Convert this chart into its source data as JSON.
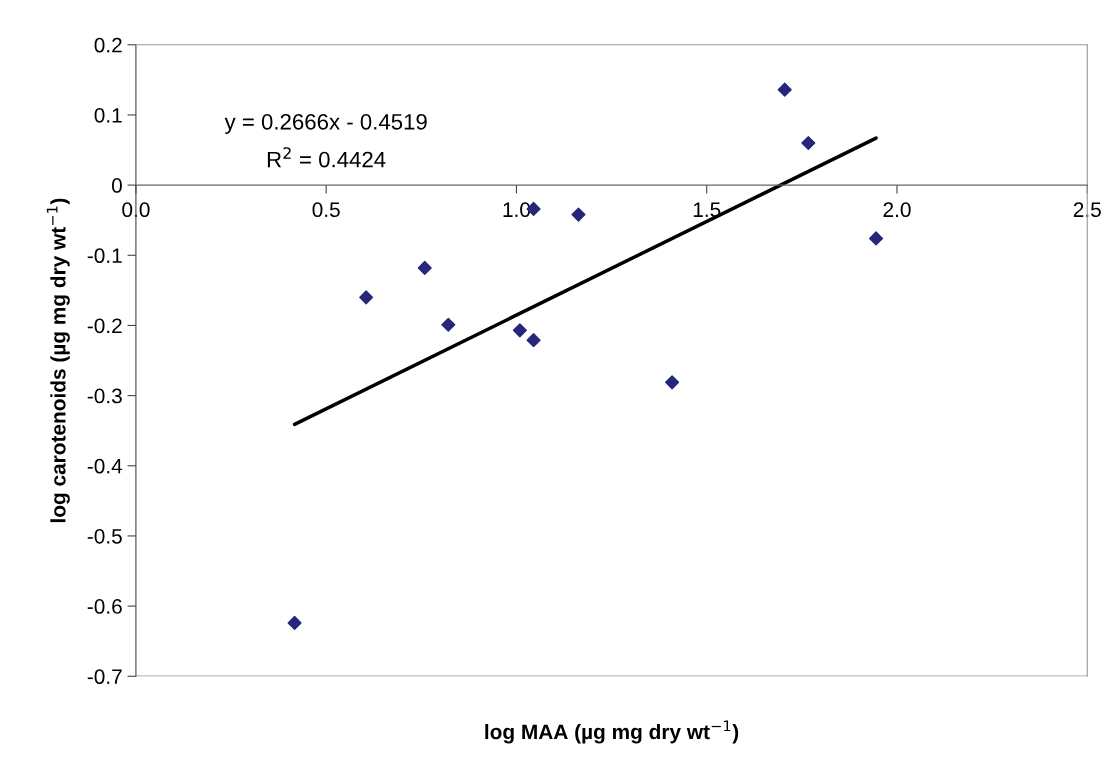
{
  "chart_data": {
    "type": "scatter",
    "xlabel": "log MAA (µg mg dry wt$^{−1}$)",
    "ylabel": "log carotenoids (µg mg dry wt$^{−1}$)",
    "annotations": [
      "y = 0.2666x - 0.4519",
      "R$^{2}$ = 0.4424"
    ],
    "legend": false,
    "grid": false,
    "xlim": [
      0,
      2.5
    ],
    "xticks": [
      {
        "value": 0,
        "label": "0.0"
      },
      0.5,
      {
        "value": 1,
        "label": "1.0"
      },
      1.5,
      {
        "value": 2,
        "label": "2.0"
      },
      2.5
    ],
    "ylim": [
      -0.7,
      0.2
    ],
    "yticks": [
      -0.7,
      -0.6,
      -0.5,
      -0.4,
      -0.3,
      -0.2,
      -0.1,
      0,
      0.1,
      0.2
    ],
    "series": [
      {
        "marker": "diamond",
        "color": "#26277a",
        "x": [
          0.417,
          0.605,
          0.759,
          0.821,
          1.009,
          1.045,
          1.409,
          1.945,
          1.045,
          1.163,
          1.705,
          1.767
        ],
        "values": [
          -0.624,
          -0.16,
          -0.118,
          -0.199,
          -0.207,
          -0.221,
          -0.281,
          -0.076,
          -0.034,
          -0.042,
          0.136,
          0.06
        ]
      },
      {
        "type": "line",
        "marker": "none",
        "color": "#000000",
        "x": [
          0.417,
          1.945
        ],
        "values": [
          -0.341,
          0.067
        ]
      }
    ]
  }
}
